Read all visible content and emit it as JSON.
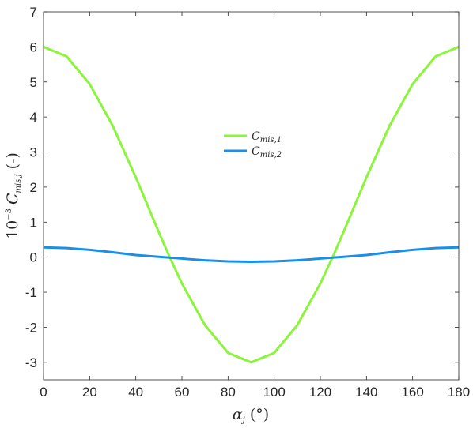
{
  "chart_data": {
    "type": "line",
    "x_axis": {
      "label_main": "α",
      "label_sub": "j",
      "label_unit": "(°)",
      "lim": [
        0,
        180
      ],
      "ticks": [
        0,
        20,
        40,
        60,
        80,
        100,
        120,
        140,
        160,
        180
      ]
    },
    "y_axis": {
      "label_prefix": "10",
      "label_exp": "−3",
      "label_var": "C",
      "label_sub": "mis,j",
      "label_unit": "(-)",
      "lim": [
        -3.5,
        7
      ],
      "ticks": [
        7,
        6,
        5,
        4,
        3,
        2,
        1,
        0,
        -1,
        -2,
        -3
      ],
      "tick_labels": [
        "7",
        "6",
        "5",
        "4",
        "3",
        "2",
        "1",
        "0",
        "-1",
        "-2",
        "-3"
      ]
    },
    "grid": false,
    "legend_position": "center",
    "series": [
      {
        "name_var": "C",
        "name_sub": "mis,1",
        "color": "#8af53b",
        "x": [
          0,
          10,
          20,
          30,
          40,
          50,
          54.7,
          60,
          70,
          80,
          90,
          100,
          110,
          120,
          125.3,
          130,
          140,
          150,
          160,
          170,
          180
        ],
        "y": [
          6.0,
          5.73,
          4.94,
          3.75,
          2.28,
          0.71,
          0.0,
          -0.75,
          -1.94,
          -2.73,
          -3.0,
          -2.73,
          -1.94,
          -0.75,
          0.0,
          0.71,
          2.28,
          3.75,
          4.94,
          5.73,
          6.0
        ]
      },
      {
        "name_var": "C",
        "name_sub": "mis,2",
        "color": "#1a8fe8",
        "x": [
          0,
          10,
          20,
          30,
          40,
          50,
          60,
          70,
          80,
          90,
          100,
          110,
          120,
          130,
          140,
          150,
          160,
          170,
          180
        ],
        "y": [
          0.28,
          0.26,
          0.21,
          0.14,
          0.06,
          0.01,
          -0.04,
          -0.09,
          -0.12,
          -0.13,
          -0.12,
          -0.09,
          -0.04,
          0.01,
          0.06,
          0.14,
          0.21,
          0.26,
          0.28
        ]
      }
    ]
  }
}
